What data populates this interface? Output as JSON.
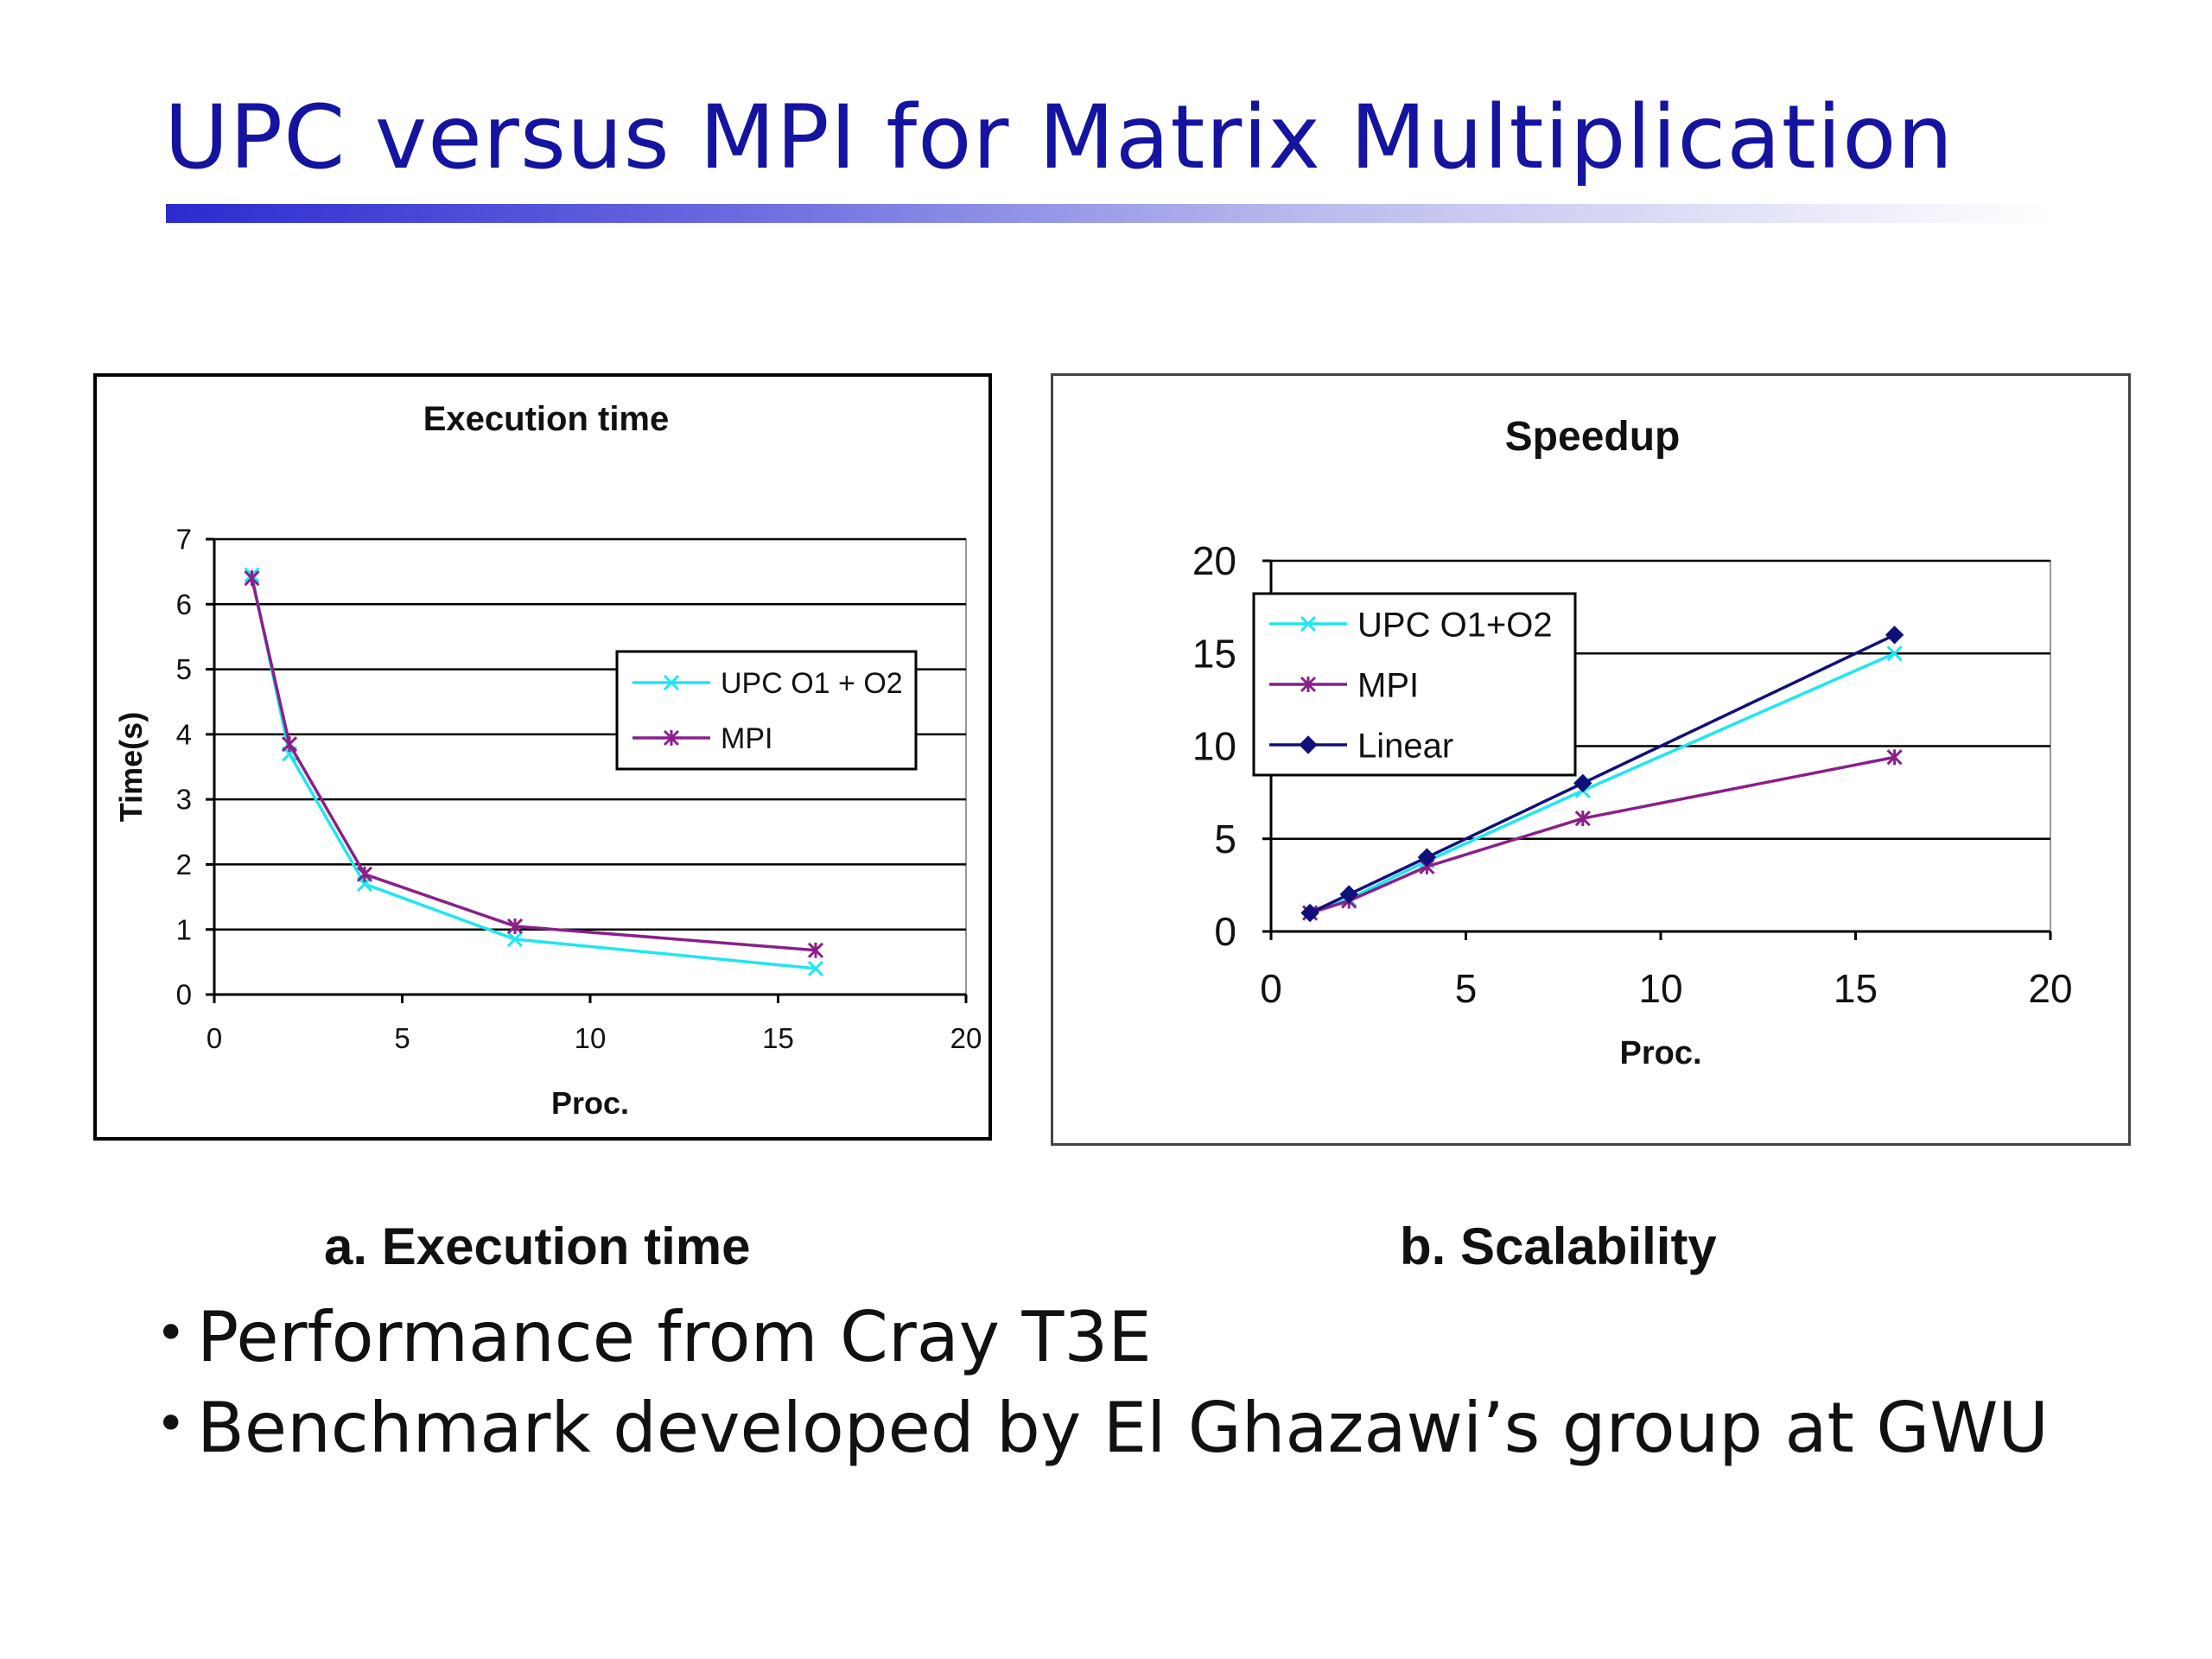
{
  "slide": {
    "title": "UPC versus MPI for Matrix Multiplication",
    "captions": [
      "a. Execution time",
      "b. Scalability"
    ],
    "bullets": [
      "Performance from Cray T3E",
      "Benchmark developed by El Ghazawi’s group at GWU"
    ]
  },
  "colors": {
    "title": "#1414a0",
    "upc": "#1fe6f0",
    "mpi": "#8a1f8a",
    "linear": "#10107a"
  },
  "chart_data": [
    {
      "type": "line",
      "title": "Execution time",
      "xlabel": "Proc.",
      "ylabel": "Time(s)",
      "xlim": [
        0,
        20
      ],
      "ylim": [
        0,
        7
      ],
      "xticks": [
        0,
        5,
        10,
        15,
        20
      ],
      "yticks": [
        0,
        1,
        2,
        3,
        4,
        5,
        6,
        7
      ],
      "grid": "horizontal",
      "legend_position": "right",
      "series": [
        {
          "name": "UPC O1 + O2",
          "color": "#1fe6f0",
          "marker": "x",
          "x": [
            1,
            2,
            4,
            8,
            16
          ],
          "y": [
            6.45,
            3.7,
            1.7,
            0.85,
            0.4
          ]
        },
        {
          "name": "MPI",
          "color": "#8a1f8a",
          "marker": "star",
          "x": [
            1,
            2,
            4,
            8,
            16
          ],
          "y": [
            6.4,
            3.85,
            1.85,
            1.05,
            0.68
          ]
        }
      ]
    },
    {
      "type": "line",
      "title": "Speedup",
      "xlabel": "Proc.",
      "ylabel": "",
      "xlim": [
        0,
        20
      ],
      "ylim": [
        0,
        20
      ],
      "xticks": [
        0,
        5,
        10,
        15,
        20
      ],
      "yticks": [
        0,
        5,
        10,
        15,
        20
      ],
      "grid": "horizontal",
      "legend_position": "top-left",
      "series": [
        {
          "name": "UPC O1+O2",
          "color": "#1fe6f0",
          "marker": "x",
          "x": [
            1,
            2,
            4,
            8,
            16
          ],
          "y": [
            1,
            1.75,
            3.8,
            7.6,
            15
          ]
        },
        {
          "name": "MPI",
          "color": "#8a1f8a",
          "marker": "star",
          "x": [
            1,
            2,
            4,
            8,
            16
          ],
          "y": [
            1,
            1.65,
            3.5,
            6.1,
            9.4
          ]
        },
        {
          "name": "Linear",
          "color": "#10107a",
          "marker": "diamond",
          "x": [
            1,
            2,
            4,
            8,
            16
          ],
          "y": [
            1,
            2,
            4,
            8,
            16
          ]
        }
      ]
    }
  ]
}
